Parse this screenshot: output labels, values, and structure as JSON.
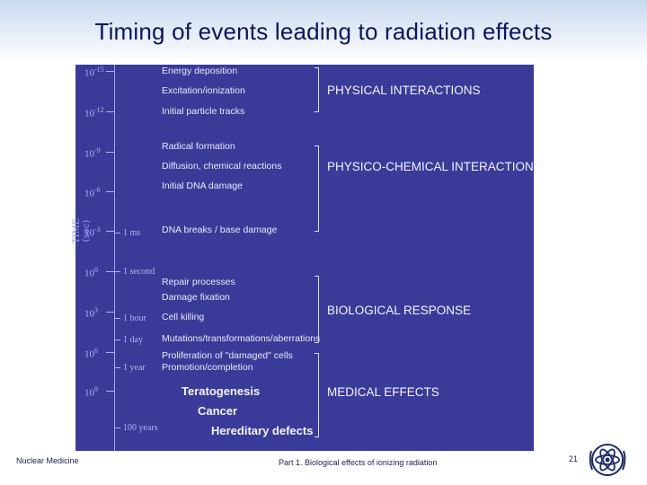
{
  "title": "Timing of events leading to  radiation effects",
  "diagram": {
    "axis_title": "TIME (sec)",
    "exponent_labels": [
      {
        "base": "10",
        "exp": "-15"
      },
      {
        "base": "10",
        "exp": "-12"
      },
      {
        "base": "10",
        "exp": "-9"
      },
      {
        "base": "10",
        "exp": "-6"
      },
      {
        "base": "10",
        "exp": "-3"
      },
      {
        "base": "10",
        "exp": "0"
      },
      {
        "base": "10",
        "exp": "3"
      },
      {
        "base": "10",
        "exp": "6"
      },
      {
        "base": "10",
        "exp": "9"
      }
    ],
    "time_labels": [
      "1 ms",
      "1 second",
      "1 hour",
      "1 day",
      "1 year",
      "100 years"
    ],
    "events": [
      "Energy deposition",
      "Excitation/ionization",
      "Initial particle tracks",
      "Radical formation",
      "Diffusion, chemical reactions",
      "Initial DNA damage",
      "DNA breaks / base damage",
      "Repair processes",
      "Damage fixation",
      "Cell killing",
      "Mutations/transformations/aberrations",
      "Proliferation of \"damaged\" cells",
      "Promotion/completion"
    ],
    "effects": [
      "Teratogenesis",
      "Cancer",
      "Hereditary defects"
    ],
    "categories": [
      "PHYSICAL INTERACTIONS",
      "PHYSICO-CHEMICAL INTERACTIONS",
      "BIOLOGICAL RESPONSE",
      "MEDICAL EFFECTS"
    ]
  },
  "footer": {
    "left": "Nuclear Medicine",
    "middle": "Part 1. Biological effects of ionizing radiation",
    "page": "21"
  },
  "colors": {
    "panel": "#3a3b98",
    "title": "#0b1560"
  }
}
